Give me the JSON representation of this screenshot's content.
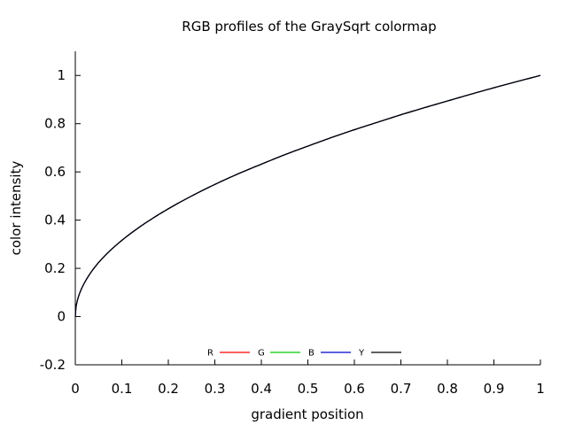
{
  "chart_data": {
    "type": "line",
    "title": "RGB profiles of the GraySqrt colormap",
    "xlabel": "gradient position",
    "ylabel": "color intensity",
    "xlim": [
      0,
      1
    ],
    "ylim": [
      -0.2,
      1.1
    ],
    "xticks": [
      "0",
      "0.1",
      "0.2",
      "0.3",
      "0.4",
      "0.5",
      "0.6",
      "0.7",
      "0.8",
      "0.9",
      "1"
    ],
    "yticks": [
      "-0.2",
      "0",
      "0.2",
      "0.4",
      "0.6",
      "0.8",
      "1"
    ],
    "grid": false,
    "legend_position": "bottom-center",
    "x": [
      0,
      0.01,
      0.02,
      0.05,
      0.1,
      0.15,
      0.2,
      0.25,
      0.3,
      0.35,
      0.4,
      0.45,
      0.5,
      0.55,
      0.6,
      0.65,
      0.7,
      0.75,
      0.8,
      0.85,
      0.9,
      0.95,
      1.0
    ],
    "series": [
      {
        "name": "R",
        "color": "#ff0000",
        "values": [
          0,
          0.1,
          0.141,
          0.224,
          0.316,
          0.387,
          0.447,
          0.5,
          0.548,
          0.592,
          0.632,
          0.671,
          0.707,
          0.742,
          0.775,
          0.806,
          0.837,
          0.866,
          0.894,
          0.922,
          0.949,
          0.975,
          1.0
        ]
      },
      {
        "name": "G",
        "color": "#00cc00",
        "values": [
          0,
          0.1,
          0.141,
          0.224,
          0.316,
          0.387,
          0.447,
          0.5,
          0.548,
          0.592,
          0.632,
          0.671,
          0.707,
          0.742,
          0.775,
          0.806,
          0.837,
          0.866,
          0.894,
          0.922,
          0.949,
          0.975,
          1.0
        ]
      },
      {
        "name": "B",
        "color": "#0000cc",
        "values": [
          0,
          0.1,
          0.141,
          0.224,
          0.316,
          0.387,
          0.447,
          0.5,
          0.548,
          0.592,
          0.632,
          0.671,
          0.707,
          0.742,
          0.775,
          0.806,
          0.837,
          0.866,
          0.894,
          0.922,
          0.949,
          0.975,
          1.0
        ]
      },
      {
        "name": "Y",
        "color": "#000000",
        "values": [
          0,
          0.1,
          0.141,
          0.224,
          0.316,
          0.387,
          0.447,
          0.5,
          0.548,
          0.592,
          0.632,
          0.671,
          0.707,
          0.742,
          0.775,
          0.806,
          0.837,
          0.866,
          0.894,
          0.922,
          0.949,
          0.975,
          1.0
        ]
      }
    ]
  }
}
